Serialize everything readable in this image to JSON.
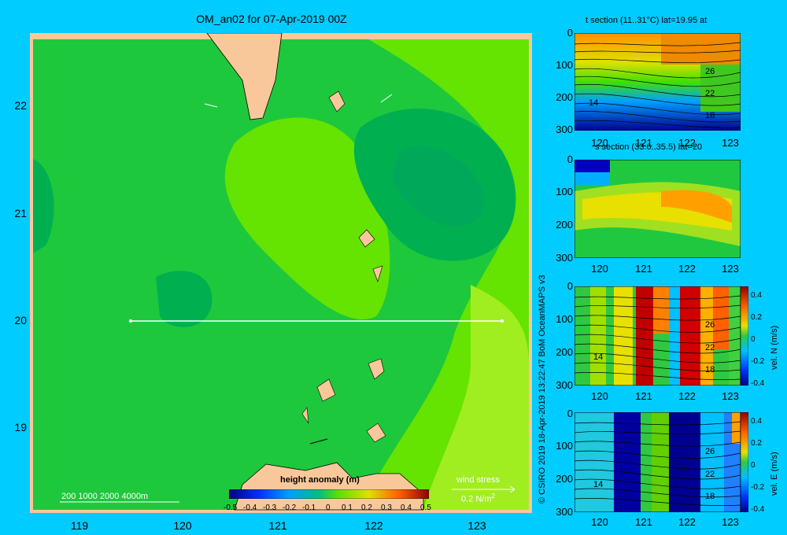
{
  "title": "OM_an02 for 07-Apr-2019 00Z",
  "main_map": {
    "y_ticks": [
      "22",
      "21",
      "20",
      "19"
    ],
    "x_ticks": [
      "119",
      "120",
      "121",
      "122",
      "123"
    ],
    "depth_legend": "200  1000  2000  4000m",
    "colorbar_title": "height anomaly (m)",
    "colorbar_ticks": [
      "-0.5",
      "-0.4",
      "-0.3",
      "-0.2",
      "-0.1",
      "0",
      "0.1",
      "0.2",
      "0.3",
      "0.4",
      "0.5"
    ],
    "wind_label_1": "wind stress",
    "wind_label_2": "0.2 N/m",
    "wind_sup": "2"
  },
  "side_text": "© CSIRO 2019   18-Apr-2019 13:22:47 BoM OceanMAPS v3",
  "panels": {
    "t_section": {
      "title": "t section (11..31°C) lat=19.95 at",
      "y_ticks": [
        "0",
        "100",
        "200",
        "300"
      ],
      "x_ticks": [
        "120",
        "121",
        "122",
        "123"
      ],
      "contours": [
        "26",
        "22",
        "18",
        "14"
      ]
    },
    "s_section": {
      "title": "s section (33.6..35.5) lat=20",
      "y_ticks": [
        "0",
        "100",
        "200",
        "300"
      ],
      "x_ticks": [
        "120",
        "121",
        "122",
        "123"
      ]
    },
    "v_section": {
      "y_ticks": [
        "0",
        "100",
        "200",
        "300"
      ],
      "x_ticks": [
        "120",
        "121",
        "122",
        "123"
      ],
      "contours": [
        "26",
        "22",
        "18",
        "14"
      ],
      "cbar_ticks": [
        "0.4",
        "0.2",
        "0",
        "-0.2",
        "-0.4"
      ],
      "cbar_label": "vel. N (m/s)"
    },
    "u_section": {
      "y_ticks": [
        "0",
        "100",
        "200",
        "300"
      ],
      "x_ticks": [
        "120",
        "121",
        "122",
        "123"
      ],
      "contours": [
        "26",
        "22",
        "18",
        "14"
      ],
      "cbar_ticks": [
        "0.4",
        "0.2",
        "0",
        "-0.2",
        "-0.4"
      ],
      "cbar_label": "vel. E (m/s)"
    }
  },
  "colors": {
    "background": "#00ccff",
    "land": "#f9c89a",
    "anomaly_neg_01": "#00b050",
    "anomaly_0": "#1ec83c",
    "anomaly_pos_01": "#64e400",
    "anomaly_pos_02": "#a0ee20"
  }
}
